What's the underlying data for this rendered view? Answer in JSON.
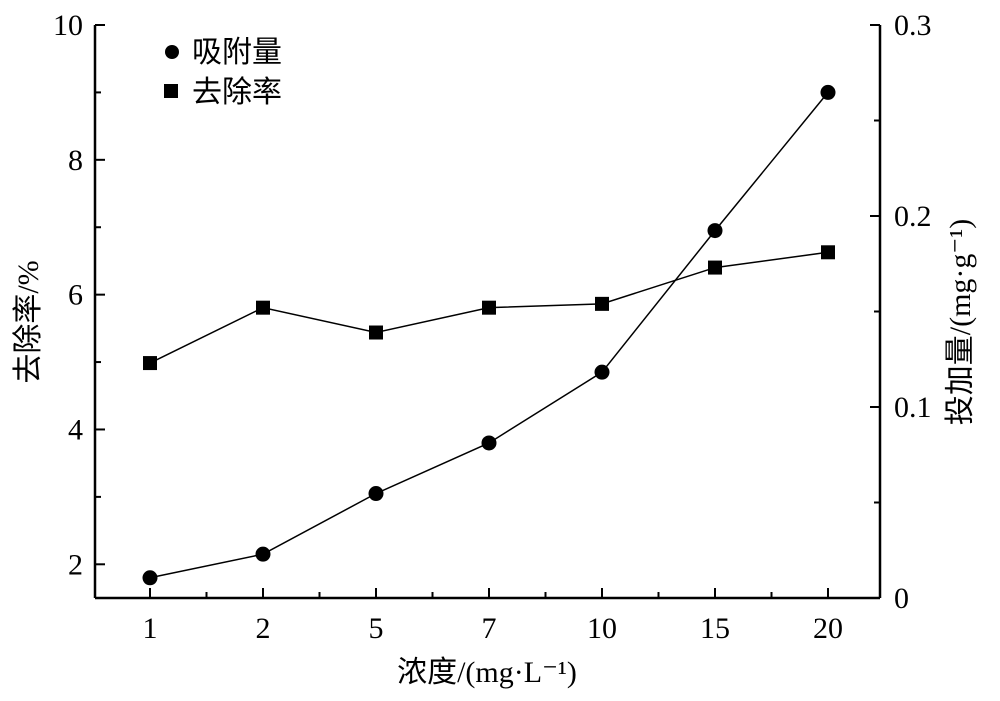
{
  "chart_data": {
    "type": "line",
    "categories": [
      "1",
      "2",
      "5",
      "7",
      "10",
      "15",
      "20"
    ],
    "xlabel": "浓度/(mg·L⁻¹)",
    "ylabel_left": "去除率/%",
    "ylabel_right": "投加量/(mg·g⁻¹)",
    "y_left": {
      "lim": [
        1.5,
        10
      ],
      "ticks": [
        "2",
        "4",
        "6",
        "8",
        "10"
      ]
    },
    "y_right": {
      "lim": [
        0,
        0.3
      ],
      "ticks": [
        "0",
        "0.1",
        "0.2",
        "0.3"
      ]
    },
    "series": [
      {
        "name": "吸附量",
        "marker": "circle",
        "axis": "left",
        "values": [
          1.8,
          2.15,
          3.05,
          3.8,
          4.85,
          6.95,
          9.0
        ]
      },
      {
        "name": "去除率",
        "marker": "square",
        "axis": "right",
        "values": [
          0.123,
          0.152,
          0.139,
          0.152,
          0.154,
          0.173,
          0.181
        ]
      }
    ],
    "legend": "top-left",
    "grid": false
  }
}
